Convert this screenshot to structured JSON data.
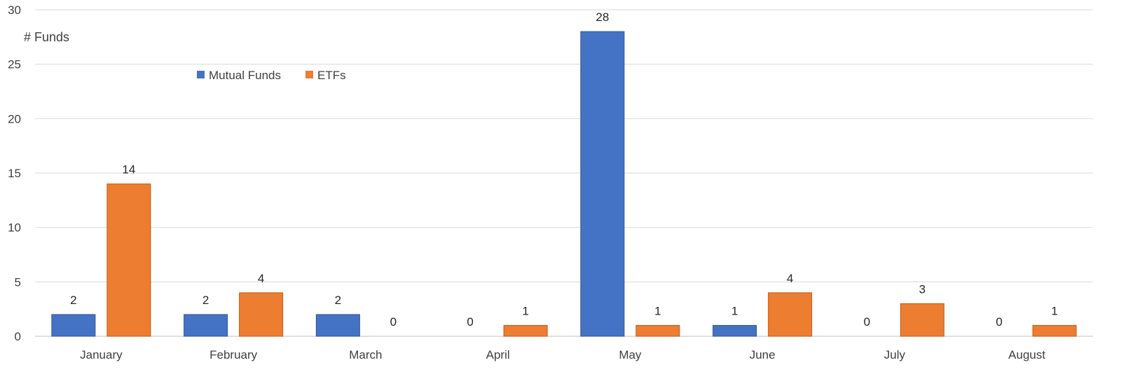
{
  "chart_data": {
    "type": "bar",
    "title": "",
    "xlabel": "",
    "ylabel": "# Funds",
    "ylim": [
      0,
      30
    ],
    "yticks": [
      0,
      5,
      10,
      15,
      20,
      25,
      30
    ],
    "grid": true,
    "legend_position": "top-left",
    "categories": [
      "January",
      "February",
      "March",
      "April",
      "May",
      "June",
      "July",
      "August"
    ],
    "series": [
      {
        "name": "Mutual Funds",
        "color": "#4472C4",
        "values": [
          2,
          2,
          2,
          0,
          28,
          1,
          0,
          0
        ]
      },
      {
        "name": "ETFs",
        "color": "#ED7D31",
        "values": [
          14,
          4,
          0,
          1,
          1,
          4,
          3,
          1
        ]
      }
    ]
  }
}
